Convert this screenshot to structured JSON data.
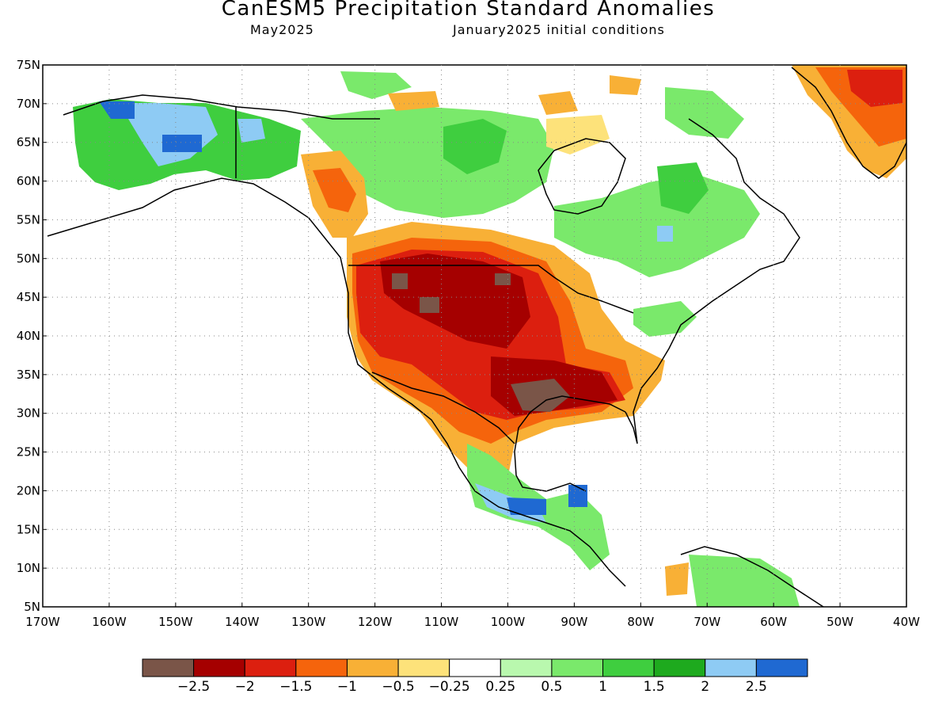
{
  "title": "CanESM5 Precipitation Standard Anomalies",
  "subtitle_left": "May2025",
  "subtitle_right": "January2025 initial conditions",
  "map": {
    "lon_min": -170,
    "lon_max": -40,
    "lat_min": 5,
    "lat_max": 75,
    "lat_ticks": [
      "75N",
      "70N",
      "65N",
      "60N",
      "55N",
      "50N",
      "45N",
      "40N",
      "35N",
      "30N",
      "25N",
      "20N",
      "15N",
      "10N",
      "5N"
    ],
    "lon_ticks": [
      "170W",
      "160W",
      "150W",
      "140W",
      "130W",
      "120W",
      "110W",
      "100W",
      "90W",
      "80W",
      "70W",
      "60W",
      "50W",
      "40W"
    ],
    "grid": "dotted",
    "features": [
      {
        "region": "central and southern United States",
        "category": "-2 to -1.5 with areas below -2.5"
      },
      {
        "region": "Great Plains / northern Rockies",
        "category": "below -2"
      },
      {
        "region": "Gulf Coast (Texas/Louisiana)",
        "category": "below -2.5"
      },
      {
        "region": "western Canada (British Columbia)",
        "category": "-1 to -0.5"
      },
      {
        "region": "Alaska",
        "category": "1 to 2.5"
      },
      {
        "region": "eastern Canada",
        "category": "0.5 to 2"
      },
      {
        "region": "southern Mexico",
        "category": "1.5 to 2.5"
      },
      {
        "region": "eastern Greenland",
        "category": "-1.5 to -2"
      }
    ]
  },
  "colorbar": {
    "colors": [
      "#7a5548",
      "#a50000",
      "#dc1f0f",
      "#f5640c",
      "#f8b036",
      "#fde27a",
      "#ffffff",
      "#b9f8ae",
      "#7ae96b",
      "#3fce3f",
      "#1eaa1e",
      "#8ecbf4",
      "#1f69d2"
    ],
    "labels": [
      "−2.5",
      "−2",
      "−1.5",
      "−1",
      "−0.5",
      "−0.25",
      "0.25",
      "0.5",
      "1",
      "1.5",
      "2",
      "2.5"
    ]
  }
}
